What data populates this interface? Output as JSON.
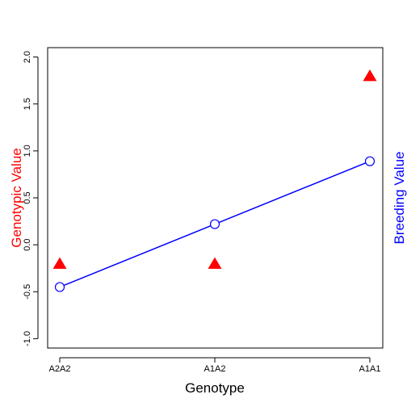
{
  "chart_data": {
    "type": "scatter",
    "xlabel": "Genotype",
    "ylabel": "Genotypic Value",
    "ylabel_right": "Breeding Value",
    "categories": [
      "A2A2",
      "A1A2",
      "A1A1"
    ],
    "yticks": [
      "-1.0",
      "-0.5",
      "0.0",
      "0.5",
      "1.0",
      "1.5",
      "2.0"
    ],
    "ylim": [
      -1.1,
      2.1
    ],
    "grid": false,
    "series": [
      {
        "key": "genotypic",
        "marker": "filled-triangle",
        "color": "#ff0000",
        "values": [
          -0.21,
          -0.21,
          1.79
        ]
      },
      {
        "key": "breeding",
        "marker": "open-circle",
        "line": true,
        "color": "#0000ff",
        "values": [
          -0.45,
          0.22,
          0.89
        ]
      }
    ],
    "colors": {
      "ylabel": "#ff0000",
      "ylabel_right": "#0000ff",
      "axis": "#000000"
    }
  }
}
